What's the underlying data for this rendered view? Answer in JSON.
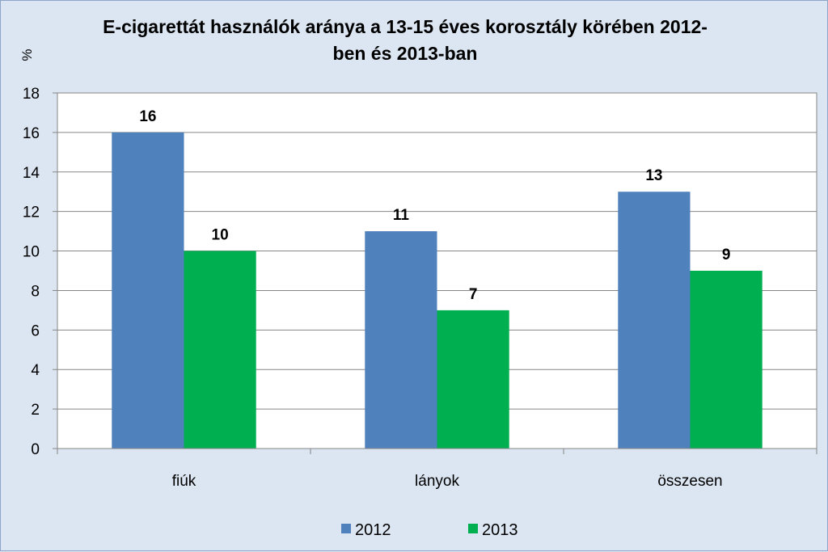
{
  "chart_data": {
    "type": "bar",
    "title_lines": [
      "E-cigarettát használók aránya a 13-15 éves korosztály körében 2012-",
      "ben és 2013-ban"
    ],
    "ylabel": "%",
    "xlabel": "",
    "categories": [
      "fiúk",
      "lányok",
      "összesen"
    ],
    "series": [
      {
        "name": "2012",
        "values": [
          16,
          11,
          13
        ],
        "color": "#4f81bd"
      },
      {
        "name": "2013",
        "values": [
          10,
          7,
          9
        ],
        "color": "#00b050"
      }
    ],
    "ylim": [
      0,
      18
    ],
    "yticks": [
      0,
      2,
      4,
      6,
      8,
      10,
      12,
      14,
      16,
      18
    ],
    "grid": true,
    "legend_position": "bottom",
    "data_labels": true,
    "plot_background": "#ffffff",
    "chart_background": "#dce6f2"
  }
}
